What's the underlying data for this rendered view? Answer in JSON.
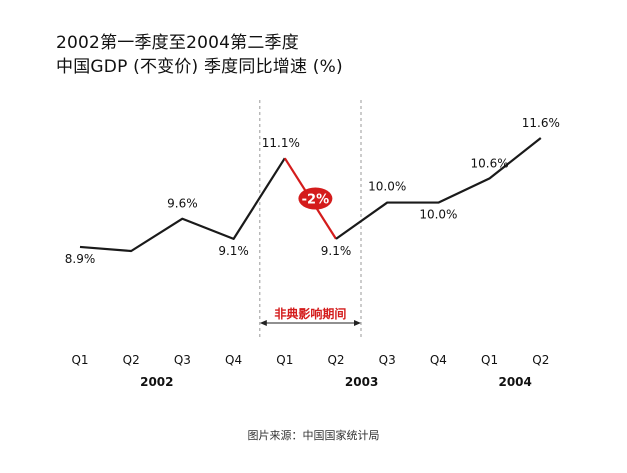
{
  "title_line1": "2002第一季度至2004第二季度",
  "title_line2": "中国GDP (不变价) 季度同比增速 (%)",
  "source": "图片来源：中国国家统计局",
  "chart_data": {
    "type": "line",
    "categories": [
      "Q1",
      "Q2",
      "Q3",
      "Q4",
      "Q1",
      "Q2",
      "Q3",
      "Q4",
      "Q1",
      "Q2"
    ],
    "values": [
      8.9,
      8.8,
      9.6,
      9.1,
      11.1,
      9.1,
      10.0,
      10.0,
      10.6,
      11.6
    ],
    "labels": [
      "8.9%",
      "",
      "9.6%",
      "9.1%",
      "11.1%",
      "9.1%",
      "10.0%",
      "10.0%",
      "10.6%",
      "11.6%"
    ],
    "years": [
      {
        "label": "2002",
        "start": 0,
        "end": 3
      },
      {
        "label": "2003",
        "start": 4,
        "end": 7
      },
      {
        "label": "2004",
        "start": 8,
        "end": 9
      }
    ],
    "highlight": {
      "from": 4,
      "to": 5,
      "badge": "-2%",
      "period_label": "非典影响期间"
    },
    "colors": {
      "line": "#1a1a1a",
      "highlight": "#d41c1c",
      "text": "#111111",
      "dash": "#999999"
    },
    "ylim": [
      8.4,
      12.0
    ]
  }
}
